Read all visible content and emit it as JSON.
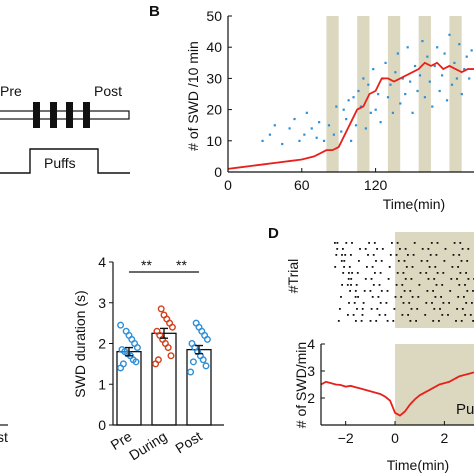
{
  "colors": {
    "shade": "#dcd8c0",
    "red_line": "#e8201c",
    "blue_dots": "#2e8fd8",
    "during_red": "#d4401c",
    "axis": "#111111"
  },
  "panel_a": {
    "label_pre": "Pre",
    "label_post": "Post",
    "label_puffs": "Puffs"
  },
  "panel_b": {
    "letter": "B",
    "chart_data": {
      "type": "scatter",
      "xlabel": "Time(min)",
      "ylabel": "# of SWD /10 min",
      "xlim": [
        0,
        200
      ],
      "ylim": [
        0,
        50
      ],
      "xticks": [
        0,
        60,
        120
      ],
      "yticks": [
        0,
        10,
        20,
        30,
        40,
        50
      ],
      "shaded_intervals": [
        [
          80,
          90
        ],
        [
          105,
          115
        ],
        [
          130,
          140
        ],
        [
          155,
          165
        ],
        [
          180,
          190
        ]
      ],
      "line_x": [
        0,
        10,
        20,
        30,
        40,
        50,
        60,
        70,
        75,
        80,
        85,
        90,
        95,
        100,
        105,
        110,
        115,
        120,
        125,
        130,
        135,
        140,
        145,
        150,
        155,
        160,
        165,
        170,
        175,
        180,
        185,
        190,
        195,
        200
      ],
      "line_y": [
        1,
        1.5,
        2,
        2.5,
        3,
        3.5,
        4,
        5,
        6,
        7,
        7,
        8,
        12,
        16,
        20,
        21,
        25,
        26,
        30,
        30,
        29,
        30,
        31,
        32,
        33,
        35,
        34,
        35,
        33,
        34,
        33,
        32,
        33,
        33
      ],
      "dots_x": [
        28,
        34,
        38,
        44,
        50,
        54,
        58,
        62,
        64,
        68,
        72,
        74,
        78,
        82,
        86,
        88,
        92,
        94,
        96,
        98,
        100,
        102,
        104,
        106,
        108,
        110,
        112,
        114,
        116,
        118,
        120,
        122,
        124,
        126,
        128,
        130,
        132,
        134,
        136,
        138,
        140,
        142,
        144,
        146,
        148,
        150,
        152,
        154,
        156,
        158,
        160,
        162,
        164,
        166,
        168,
        170,
        172,
        174,
        176,
        178,
        180,
        182,
        184,
        186,
        188,
        190,
        192,
        194,
        196,
        198
      ],
      "dots_y": [
        10,
        12,
        15,
        9,
        14,
        17,
        10,
        12,
        19,
        14,
        11,
        16,
        10,
        15,
        12,
        21,
        13,
        20,
        17,
        23,
        10,
        24,
        15,
        26,
        21,
        30,
        14,
        28,
        19,
        33,
        20,
        25,
        16,
        30,
        35,
        24,
        28,
        19,
        32,
        38,
        22,
        30,
        25,
        40,
        29,
        19,
        34,
        26,
        31,
        42,
        24,
        37,
        29,
        21,
        34,
        40,
        26,
        31,
        38,
        23,
        44,
        28,
        35,
        30,
        41,
        25,
        33,
        37,
        30,
        39
      ]
    }
  },
  "panel_c": {
    "chart_data": {
      "type": "bar",
      "categories": [
        "Pre",
        "During",
        "Post"
      ],
      "values": [
        1.8,
        2.25,
        1.85
      ],
      "errors": [
        0.1,
        0.12,
        0.1
      ],
      "ylabel": "SWD duration (s)",
      "ylim": [
        0,
        4
      ],
      "yticks": [
        0,
        1,
        2,
        3,
        4
      ],
      "significance": [
        "**",
        "**"
      ],
      "points": [
        [
          1.4,
          1.55,
          1.6,
          1.7,
          1.75,
          1.8,
          1.85,
          1.9,
          2.0,
          2.1,
          2.2,
          2.3,
          1.5,
          2.45
        ],
        [
          1.5,
          1.7,
          1.9,
          2.0,
          2.1,
          2.2,
          2.3,
          2.4,
          2.5,
          2.6,
          2.7,
          2.85,
          1.6
        ],
        [
          1.3,
          1.45,
          1.6,
          1.7,
          1.8,
          1.9,
          2.0,
          2.1,
          2.2,
          2.3,
          2.4,
          2.5,
          1.55
        ]
      ]
    },
    "left_stub_label": "st"
  },
  "panel_d": {
    "letter": "D",
    "raster_ylabel": "#Trial",
    "chart_data": {
      "type": "line",
      "xlabel": "Time(min)",
      "ylabel": "# of SWD/min",
      "xlim": [
        -3,
        3.2
      ],
      "ylim": [
        1,
        4
      ],
      "xticks": [
        -2,
        0,
        2
      ],
      "yticks": [
        2,
        3,
        4
      ],
      "x": [
        -3,
        -2.8,
        -2.6,
        -2.4,
        -2.2,
        -2.0,
        -1.8,
        -1.6,
        -1.4,
        -1.2,
        -1.0,
        -0.8,
        -0.6,
        -0.4,
        -0.2,
        0,
        0.2,
        0.4,
        0.6,
        0.8,
        1.0,
        1.2,
        1.4,
        1.6,
        1.8,
        2.0,
        2.2,
        2.4,
        2.6,
        2.8,
        3.0,
        3.2
      ],
      "y": [
        2.5,
        2.6,
        2.55,
        2.5,
        2.48,
        2.42,
        2.45,
        2.4,
        2.35,
        2.3,
        2.25,
        2.2,
        2.15,
        2.05,
        1.9,
        1.45,
        1.35,
        1.5,
        1.75,
        1.95,
        2.1,
        2.2,
        2.3,
        2.4,
        2.5,
        2.55,
        2.6,
        2.7,
        2.8,
        2.85,
        2.9,
        2.95
      ],
      "shade_from": 0
    },
    "puffs_label": "Pu"
  }
}
